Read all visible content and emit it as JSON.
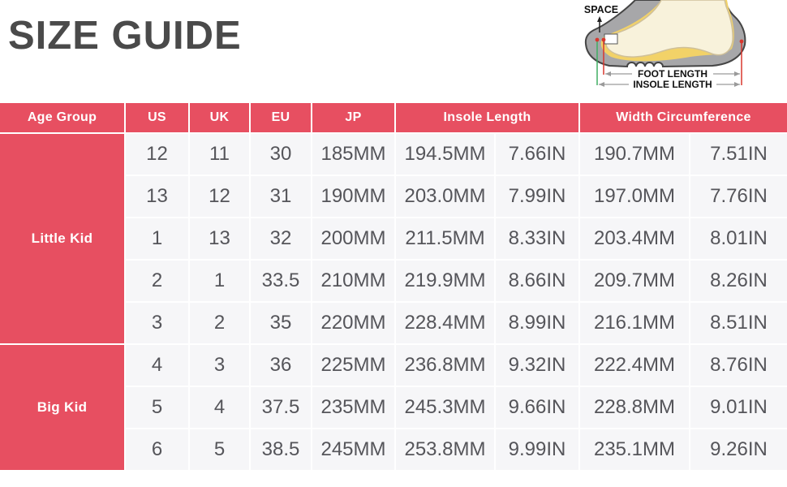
{
  "page": {
    "title": "SIZE GUIDE"
  },
  "diagram": {
    "space_label": "SPACE",
    "foot_length_label": "FOOT LENGTH",
    "insole_length_label": "INSOLE LENGTH",
    "colors": {
      "shoe_gray": "#a7a7a9",
      "shoe_outline": "#454545",
      "foot_cream": "#f8f2db",
      "insole_yellow": "#f2d268",
      "marker_red": "#d8372e",
      "marker_green": "#3fae63"
    }
  },
  "table": {
    "accent_color": "#e74f61",
    "row_bg": "#f6f6f8",
    "text_color": "#55555a",
    "headers": {
      "age_group": "Age Group",
      "us": "US",
      "uk": "UK",
      "eu": "EU",
      "jp": "JP",
      "insole_length": "Insole Length",
      "width_circumference": "Width Circumference"
    },
    "groups": [
      {
        "label": "Little Kid",
        "rows": [
          [
            "12",
            "11",
            "30",
            "185MM",
            "194.5MM",
            "7.66IN",
            "190.7MM",
            "7.51IN"
          ],
          [
            "13",
            "12",
            "31",
            "190MM",
            "203.0MM",
            "7.99IN",
            "197.0MM",
            "7.76IN"
          ],
          [
            "1",
            "13",
            "32",
            "200MM",
            "211.5MM",
            "8.33IN",
            "203.4MM",
            "8.01IN"
          ],
          [
            "2",
            "1",
            "33.5",
            "210MM",
            "219.9MM",
            "8.66IN",
            "209.7MM",
            "8.26IN"
          ],
          [
            "3",
            "2",
            "35",
            "220MM",
            "228.4MM",
            "8.99IN",
            "216.1MM",
            "8.51IN"
          ]
        ]
      },
      {
        "label": "Big Kid",
        "rows": [
          [
            "4",
            "3",
            "36",
            "225MM",
            "236.8MM",
            "9.32IN",
            "222.4MM",
            "8.76IN"
          ],
          [
            "5",
            "4",
            "37.5",
            "235MM",
            "245.3MM",
            "9.66IN",
            "228.8MM",
            "9.01IN"
          ],
          [
            "6",
            "5",
            "38.5",
            "245MM",
            "253.8MM",
            "9.99IN",
            "235.1MM",
            "9.26IN"
          ]
        ]
      }
    ]
  }
}
